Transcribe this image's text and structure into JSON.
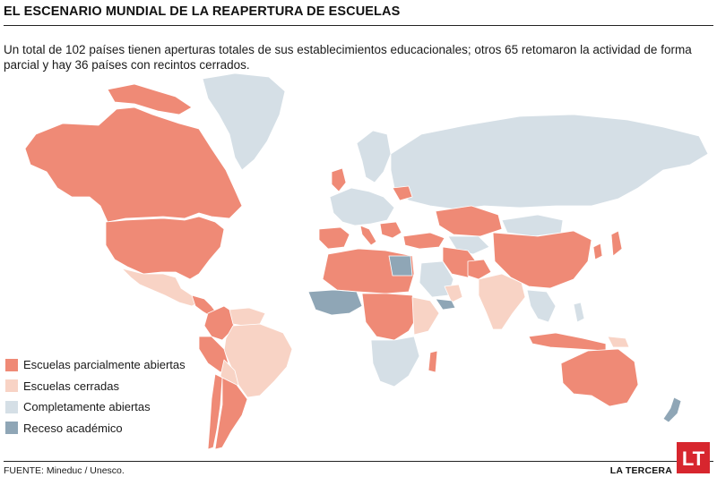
{
  "header": {
    "title": "EL ESCENARIO MUNDIAL DE LA REAPERTURA DE ESCUELAS",
    "subtitle": "Un total de 102 países tienen aperturas totales de sus establecimientos educacionales; otros 65 retomaron la actividad de forma parcial y hay 36 países con recintos cerrados."
  },
  "legend": {
    "items": [
      {
        "label": "Escuelas parcialmente abiertas",
        "color": "#ef8a76"
      },
      {
        "label": "Escuelas cerradas",
        "color": "#f8d3c5"
      },
      {
        "label": "Completamente abiertas",
        "color": "#d5dfe6"
      },
      {
        "label": "Receso académico",
        "color": "#8fa6b6"
      }
    ]
  },
  "map": {
    "colors": {
      "partial": "#ef8a76",
      "closed": "#f8d3c5",
      "open": "#d5dfe6",
      "recess": "#8fa6b6",
      "border": "#ffffff"
    }
  },
  "footer": {
    "source": "FUENTE: Mineduc / Unesco.",
    "brand": "LA TERCERA",
    "logo_text": "LT",
    "logo_color": "#d7262e"
  }
}
